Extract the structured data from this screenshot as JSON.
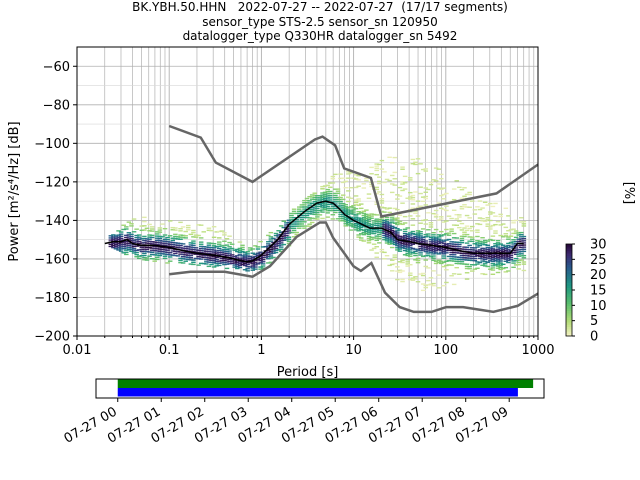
{
  "header": {
    "line1": "BK.YBH.50.HHN   2022-07-27 -- 2022-07-27  (17/17 segments)",
    "line2": "sensor_type STS-2.5 sensor_sn 120950",
    "line3": "datalogger_type Q330HR datalogger_sn 5492"
  },
  "colorbar": {
    "label": "[%]",
    "ticks": [
      "0",
      "5",
      "10",
      "15",
      "20",
      "25",
      "30"
    ],
    "range": [
      0,
      30
    ]
  },
  "chart_data": [
    {
      "type": "heatmap",
      "xlabel": "Period [s]",
      "ylabel": "Power [m²/s⁴/Hz] [dB]",
      "xscale": "log",
      "xlim": [
        0.01,
        1000
      ],
      "ylim": [
        -200,
        -50
      ],
      "xticks": [
        "0.01",
        "0.1",
        "1",
        "10",
        "100",
        "1000"
      ],
      "yticks": [
        "−200",
        "−180",
        "−160",
        "−140",
        "−120",
        "−100",
        "−80",
        "−60"
      ],
      "grid": true,
      "high_noise_model": {
        "x": [
          0.1,
          0.22,
          0.32,
          0.8,
          3.8,
          4.6,
          6.3,
          7.9,
          15.4,
          20,
          354.8,
          1000
        ],
        "y": [
          -91,
          -97,
          -110,
          -120,
          -98,
          -96.5,
          -101,
          -113,
          -118,
          -138,
          -126,
          -111
        ]
      },
      "low_noise_model": {
        "x": [
          0.1,
          0.17,
          0.4,
          0.8,
          1.24,
          2.4,
          4.3,
          5,
          6,
          10,
          12,
          15.6,
          21.9,
          31.6,
          45,
          70,
          101,
          154,
          328,
          600,
          1000
        ],
        "y": [
          -168,
          -166.7,
          -166.7,
          -169.2,
          -163.7,
          -148.6,
          -141.1,
          -141.1,
          -149,
          -163.8,
          -166.2,
          -162.1,
          -177.5,
          -185,
          -187.5,
          -187.5,
          -185,
          -185,
          -187.5,
          -184.4,
          -178
        ]
      },
      "mode_line": {
        "x": [
          0.02,
          0.025,
          0.03,
          0.035,
          0.04,
          0.05,
          0.07,
          0.1,
          0.15,
          0.2,
          0.3,
          0.4,
          0.5,
          0.6,
          0.7,
          0.8,
          1,
          1.5,
          2,
          3,
          4,
          5,
          6,
          7,
          8,
          10,
          15,
          20,
          25,
          30,
          40,
          50,
          70,
          100,
          150,
          200,
          300,
          400,
          500,
          600,
          700
        ],
        "y": [
          -152,
          -151,
          -151,
          -150,
          -152,
          -153,
          -153,
          -154,
          -156,
          -157,
          -158,
          -159,
          -160,
          -161,
          -161.5,
          -161,
          -158,
          -150,
          -142,
          -135,
          -131,
          -130,
          -131,
          -134,
          -137,
          -140,
          -144,
          -144,
          -146,
          -150,
          -151,
          -152,
          -153,
          -154,
          -156,
          -157,
          -157,
          -157,
          -157,
          -152,
          -152
        ]
      },
      "density_bands": [
        {
          "x": [
            0.02,
            0.03,
            0.05,
            0.1,
            0.2,
            0.3,
            0.5,
            0.7,
            1,
            1.5,
            2,
            3,
            4,
            5,
            7,
            10,
            15,
            20,
            30,
            50,
            70,
            100,
            200,
            300,
            500,
            700
          ],
          "ymin": [
            -153,
            -157,
            -160,
            -162,
            -163,
            -164,
            -165,
            -166,
            -165,
            -158,
            -152,
            -144,
            -139,
            -138,
            -141,
            -148,
            -156,
            -164,
            -172,
            -176,
            -176,
            -174,
            -170,
            -168,
            -166,
            -170
          ],
          "ymax": [
            -150,
            -140,
            -138,
            -140,
            -142,
            -143,
            -150,
            -153,
            -150,
            -141,
            -135,
            -128,
            -124,
            -119,
            -113,
            -116,
            -112,
            -108,
            -105,
            -108,
            -112,
            -115,
            -128,
            -130,
            -135,
            -140
          ]
        }
      ],
      "colorbar_range": [
        0,
        30
      ]
    },
    {
      "type": "bar",
      "title": "",
      "xlabel": "",
      "xticks": [
        "07-27 00",
        "07-27 01",
        "07-27 02",
        "07-27 03",
        "07-27 04",
        "07-27 05",
        "07-27 06",
        "07-27 07",
        "07-27 08",
        "07-27 09"
      ],
      "xlim_hours": [
        -0.5,
        9.8
      ],
      "bars": [
        {
          "color": "#008000",
          "start_hour": 0.0,
          "end_hour": 9.55
        },
        {
          "color": "#0000ff",
          "start_hour": 0.0,
          "end_hour": 9.2
        }
      ]
    }
  ]
}
